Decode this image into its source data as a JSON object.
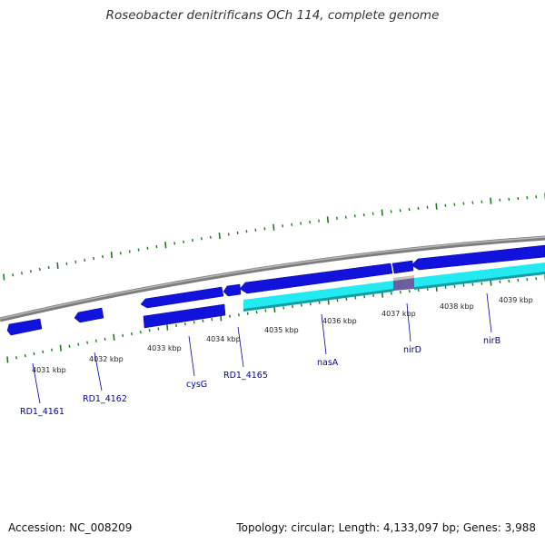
{
  "title": "Roseobacter denitrificans OCh 114, complete genome",
  "footer": {
    "accession": "Accession: NC_008209",
    "summary": "Topology: circular; Length: 4,133,097 bp; Genes: 3,988"
  },
  "colors": {
    "backbone": "#8a8a8a",
    "gene_forward": "#1010dd",
    "gene_reverse": "#1010dd",
    "feature_cyan": "#22e8ee",
    "feature_cyan_dark": "#139aa0",
    "ticks": "#1e7a1e",
    "label": "#0000aa"
  },
  "scale_labels": [
    "4031 kbp",
    "4032 kbp",
    "4033 kbp",
    "4034 kbp",
    "4035 kbp",
    "4036 kbp",
    "4037 kbp",
    "4038 kbp",
    "4039 kbp"
  ],
  "genes": [
    "RD1_4161",
    "RD1_4162",
    "cysG",
    "RD1_4165",
    "nasA",
    "nirD",
    "nirB"
  ]
}
